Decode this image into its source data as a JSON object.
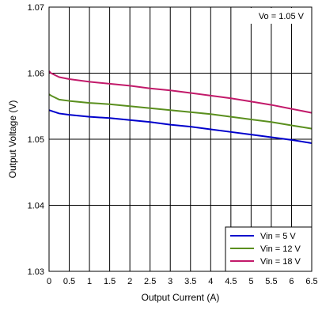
{
  "chart_data": {
    "type": "line",
    "xlabel": "Output Current (A)",
    "ylabel": "Output Voltage (V)",
    "xlim": [
      0,
      6.5
    ],
    "ylim": [
      1.03,
      1.07
    ],
    "x_ticks": [
      "0",
      "0.5",
      "1",
      "1.5",
      "2",
      "2.5",
      "3",
      "3.5",
      "4",
      "4.5",
      "5",
      "5.5",
      "6",
      "6.5"
    ],
    "y_ticks": [
      "1.03",
      "1.04",
      "1.05",
      "1.06",
      "1.07"
    ],
    "grid": true,
    "annotation": "Vo = 1.05 V",
    "legend_position": "bottom-right",
    "x": [
      0,
      0.05,
      0.25,
      0.5,
      1,
      1.5,
      2,
      2.5,
      3,
      3.5,
      4,
      4.5,
      5,
      5.5,
      6,
      6.5
    ],
    "series": [
      {
        "name": "Vin = 5 V",
        "color": "#0000cc",
        "values": [
          1.0544,
          1.0543,
          1.0539,
          1.0537,
          1.0534,
          1.0532,
          1.0529,
          1.0526,
          1.0522,
          1.0519,
          1.0515,
          1.0511,
          1.0507,
          1.0503,
          1.0499,
          1.0494
        ]
      },
      {
        "name": "Vin = 12 V",
        "color": "#5a8f1e",
        "values": [
          1.0568,
          1.0566,
          1.056,
          1.0558,
          1.0555,
          1.0553,
          1.055,
          1.0547,
          1.0544,
          1.0541,
          1.0538,
          1.0534,
          1.053,
          1.0526,
          1.0521,
          1.0516
        ]
      },
      {
        "name": "Vin = 18 V",
        "color": "#c21a6a",
        "values": [
          1.0603,
          1.06,
          1.0594,
          1.0591,
          1.0587,
          1.0584,
          1.0581,
          1.0577,
          1.0574,
          1.057,
          1.0566,
          1.0562,
          1.0557,
          1.0552,
          1.0546,
          1.054
        ]
      }
    ]
  }
}
